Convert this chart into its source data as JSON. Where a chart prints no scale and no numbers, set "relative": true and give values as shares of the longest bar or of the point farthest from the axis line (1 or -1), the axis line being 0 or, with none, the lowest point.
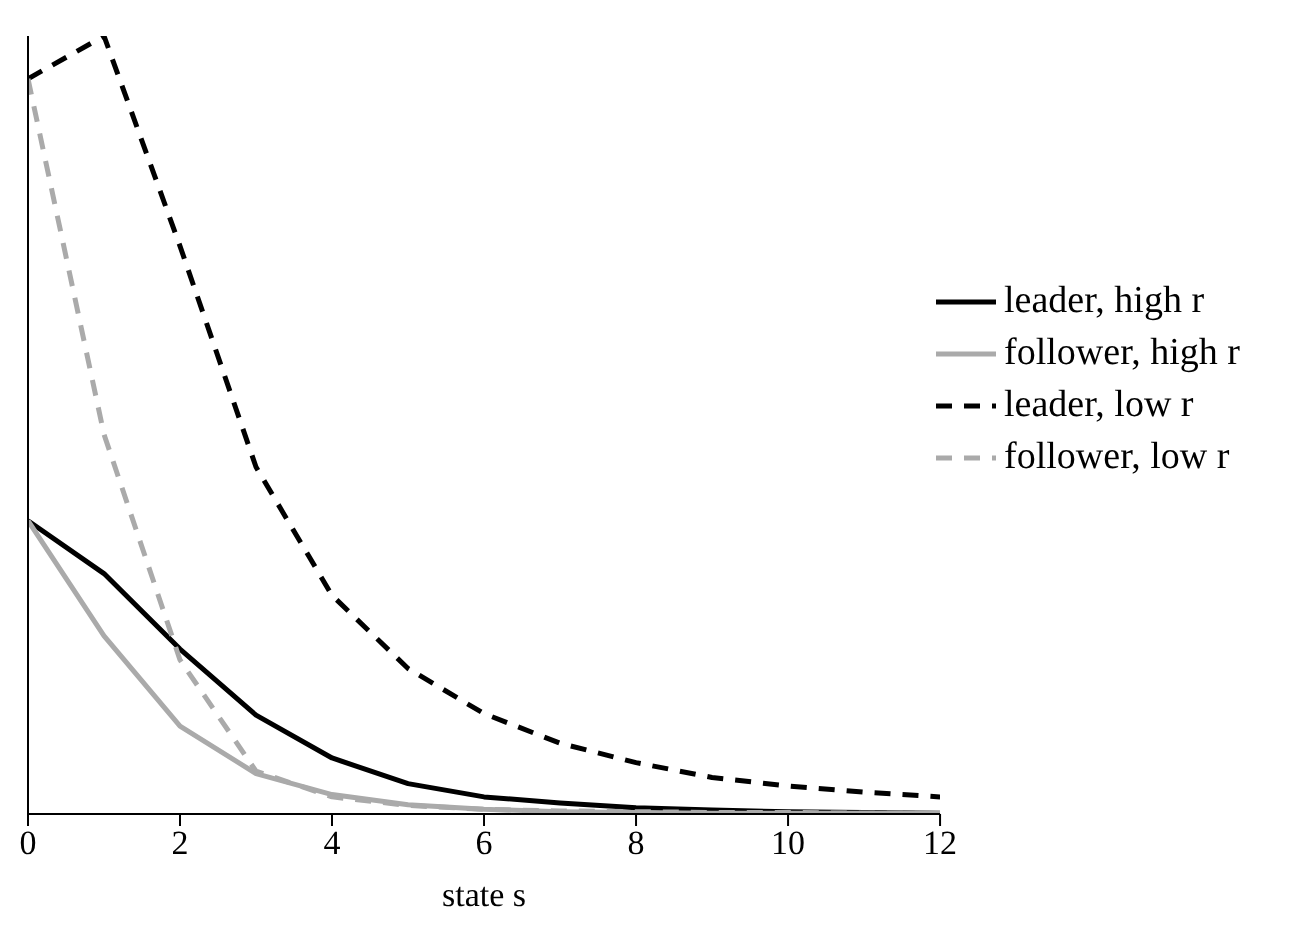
{
  "chart_data": {
    "type": "line",
    "relative": true,
    "xlabel": "state s",
    "x": [
      0,
      1,
      2,
      3,
      4,
      5,
      6,
      7,
      8,
      9,
      10,
      11,
      12
    ],
    "xlim": [
      0,
      12
    ],
    "xticks": [
      0,
      2,
      4,
      6,
      8,
      10,
      12
    ],
    "legend": "right",
    "marker": "none",
    "series": [
      {
        "name": "leader, high r",
        "color": "#000000",
        "line_style": "solid",
        "values": [
          0.377,
          0.309,
          0.212,
          0.127,
          0.072,
          0.039,
          0.022,
          0.014,
          0.008,
          0.005,
          0.003,
          0.002,
          0.001
        ]
      },
      {
        "name": "follower, high r",
        "color": "#aaaaaa",
        "line_style": "solid",
        "values": [
          0.377,
          0.229,
          0.113,
          0.052,
          0.025,
          0.012,
          0.006,
          0.003,
          0.002,
          0.001,
          0.001,
          0.001,
          0.001
        ]
      },
      {
        "name": "leader, low r",
        "color": "#000000",
        "line_style": "dashed",
        "values": [
          0.945,
          1,
          0.73,
          0.446,
          0.281,
          0.187,
          0.129,
          0.091,
          0.066,
          0.047,
          0.036,
          0.028,
          0.022
        ]
      },
      {
        "name": "follower, low r",
        "color": "#aaaaaa",
        "line_style": "dashed",
        "values": [
          0.945,
          0.488,
          0.198,
          0.055,
          0.022,
          0.011,
          0.006,
          0.004,
          0.003,
          0.002,
          0.002,
          0.001,
          0.001
        ]
      }
    ]
  }
}
